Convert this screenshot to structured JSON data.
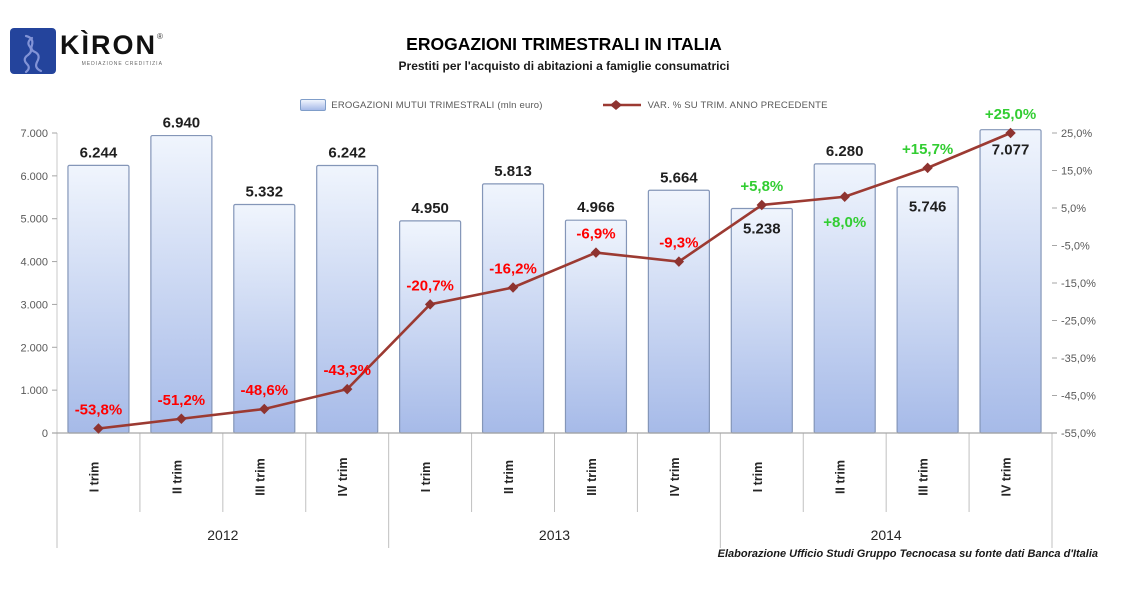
{
  "logo": {
    "brand": "KÌRON",
    "registered": "®",
    "tagline": "MEDIAZIONE CREDITIZIA"
  },
  "footer": {
    "source": "Elaborazione Ufficio Studi Gruppo Tecnocasa su fonte dati Banca d'Italia"
  },
  "colors": {
    "bar_top": "#F0F5FD",
    "bar_bottom": "#A6BAE8",
    "bar_border": "#8496B8",
    "line": "#9C3A32",
    "marker": "#8E3330",
    "negative_label": "#FF0000",
    "positive_label": "#32CD32",
    "axis_line": "#A6A6A6",
    "separator": "#C0C0C0",
    "logo_blue": "#24449C"
  },
  "chart_data": {
    "type": "bar+line",
    "title": "EROGAZIONI TRIMESTRALI IN ITALIA",
    "subtitle": "Prestiti per l'acquisto di abitazioni a famiglie consumatrici",
    "legend_position": "top",
    "grid": false,
    "categories": [
      "I trim",
      "II trim",
      "III trim",
      "IV trim",
      "I trim",
      "II trim",
      "III trim",
      "IV trim",
      "I trim",
      "II trim",
      "III trim",
      "IV trim"
    ],
    "year_groups": [
      {
        "label": "2012",
        "span": 4
      },
      {
        "label": "2013",
        "span": 4
      },
      {
        "label": "2014",
        "span": 4
      }
    ],
    "series": [
      {
        "name": "EROGAZIONI MUTUI TRIMESTRALI (mln euro)",
        "type": "bar",
        "axis": "left",
        "values": [
          6244,
          6940,
          5332,
          6242,
          4950,
          5813,
          4966,
          5664,
          5238,
          6280,
          5746,
          7077
        ],
        "labels": [
          "6.244",
          "6.940",
          "5.332",
          "6.242",
          "4.950",
          "5.813",
          "4.966",
          "5.664",
          "5.238",
          "6.280",
          "5.746",
          "7.077"
        ]
      },
      {
        "name": "VAR. % SU TRIM. ANNO PRECEDENTE",
        "type": "line",
        "axis": "right",
        "values": [
          -53.8,
          -51.2,
          -48.6,
          -43.3,
          -20.7,
          -16.2,
          -6.9,
          -9.3,
          5.8,
          8.0,
          15.7,
          25.0
        ],
        "labels": [
          "-53,8%",
          "-51,2%",
          "-48,6%",
          "-43,3%",
          "-20,7%",
          "-16,2%",
          "-6,9%",
          "-9,3%",
          "+5,8%",
          "+8,0%",
          "+15,7%",
          "+25,0%"
        ]
      }
    ],
    "left_axis": {
      "min": 0,
      "max": 7000,
      "ticks": [
        "0",
        "1.000",
        "2.000",
        "3.000",
        "4.000",
        "5.000",
        "6.000",
        "7.000"
      ]
    },
    "right_axis": {
      "min": -55,
      "max": 25,
      "ticks": [
        "-55,0%",
        "-45,0%",
        "-35,0%",
        "-25,0%",
        "-15,0%",
        "-5,0%",
        "5,0%",
        "15,0%",
        "25,0%"
      ]
    }
  }
}
